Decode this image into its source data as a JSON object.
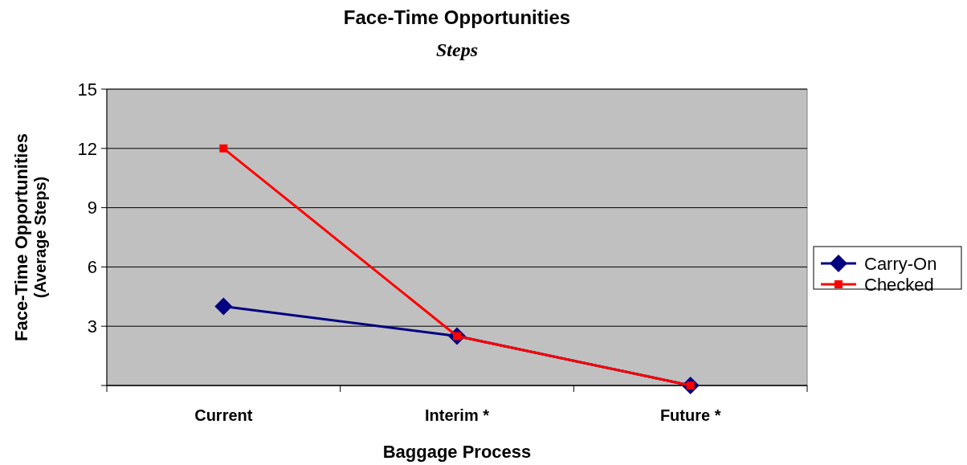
{
  "chart_data": {
    "type": "line",
    "title": "Face-Time Opportunities",
    "subtitle": "Steps",
    "xlabel": "Baggage Process",
    "ylabel": "Face-Time Opportunities\n(Average Steps)",
    "categories": [
      "Current",
      "Interim *",
      "Future *"
    ],
    "series": [
      {
        "name": "Carry-On",
        "color": "#000080",
        "values": [
          4,
          2.5,
          0
        ],
        "marker": "diamond"
      },
      {
        "name": "Checked",
        "color": "#ff0000",
        "values": [
          12,
          2.5,
          0
        ],
        "marker": "square"
      }
    ],
    "ylim": [
      0,
      15
    ],
    "yticks": [
      {
        "value": 0,
        "label": null
      },
      3,
      6,
      9,
      12,
      15
    ],
    "grid": "y",
    "legend": "right",
    "line_style": "solid"
  }
}
